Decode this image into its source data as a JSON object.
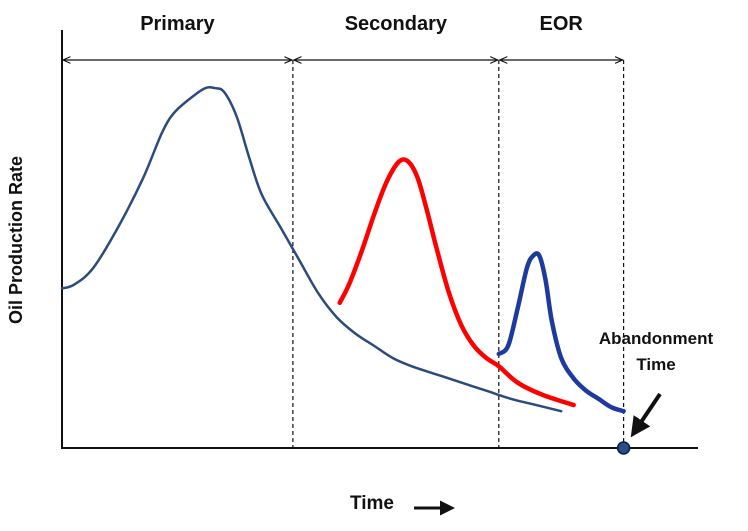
{
  "chart_data": {
    "type": "line",
    "title": "",
    "xlabel": "Time",
    "ylabel": "Oil Production Rate",
    "xlim": [
      0,
      100
    ],
    "ylim": [
      0,
      100
    ],
    "grid": false,
    "phases": [
      {
        "label": "Primary",
        "start": 0,
        "end": 37
      },
      {
        "label": "Secondary",
        "start": 37,
        "end": 70
      },
      {
        "label": "EOR",
        "start": 70,
        "end": 90
      }
    ],
    "series": [
      {
        "color": "#2a4b7c",
        "width": 2.5,
        "x": [
          0,
          2,
          5,
          9,
          13,
          16,
          18,
          21,
          23,
          24.5,
          26,
          28,
          30,
          32,
          35,
          38,
          41,
          44,
          47,
          50,
          53,
          56,
          60,
          64,
          68,
          72,
          76,
          80
        ],
        "y": [
          39,
          40,
          44,
          54,
          66,
          77,
          82,
          86,
          88,
          88,
          87,
          81,
          71,
          62,
          54,
          46,
          38,
          32,
          28,
          25,
          22,
          20,
          18,
          16,
          14,
          12,
          10.5,
          9
        ]
      },
      {
        "color": "#ff0000",
        "width": 4.5,
        "x": [
          44.5,
          46,
          48,
          50,
          52,
          54,
          55.5,
          57,
          58.5,
          60,
          62,
          64,
          66,
          68,
          70,
          73,
          77,
          82
        ],
        "y": [
          35.5,
          40,
          48,
          57,
          65,
          70,
          70,
          66,
          58,
          49,
          38,
          30,
          25,
          22,
          20,
          16,
          13,
          10.5
        ]
      },
      {
        "color": "#1f3a9e",
        "width": 4.5,
        "x": [
          70,
          71.5,
          73,
          74.5,
          75.5,
          76.5,
          77.5,
          78.5,
          80,
          82,
          84,
          86,
          88,
          90
        ],
        "y": [
          23,
          25,
          34,
          44,
          47,
          47,
          41,
          31,
          22,
          17,
          14,
          12,
          10,
          9
        ]
      }
    ],
    "annotations": [
      {
        "text": [
          "Abandonment",
          "Time"
        ],
        "x": 90,
        "y": 0
      }
    ]
  }
}
